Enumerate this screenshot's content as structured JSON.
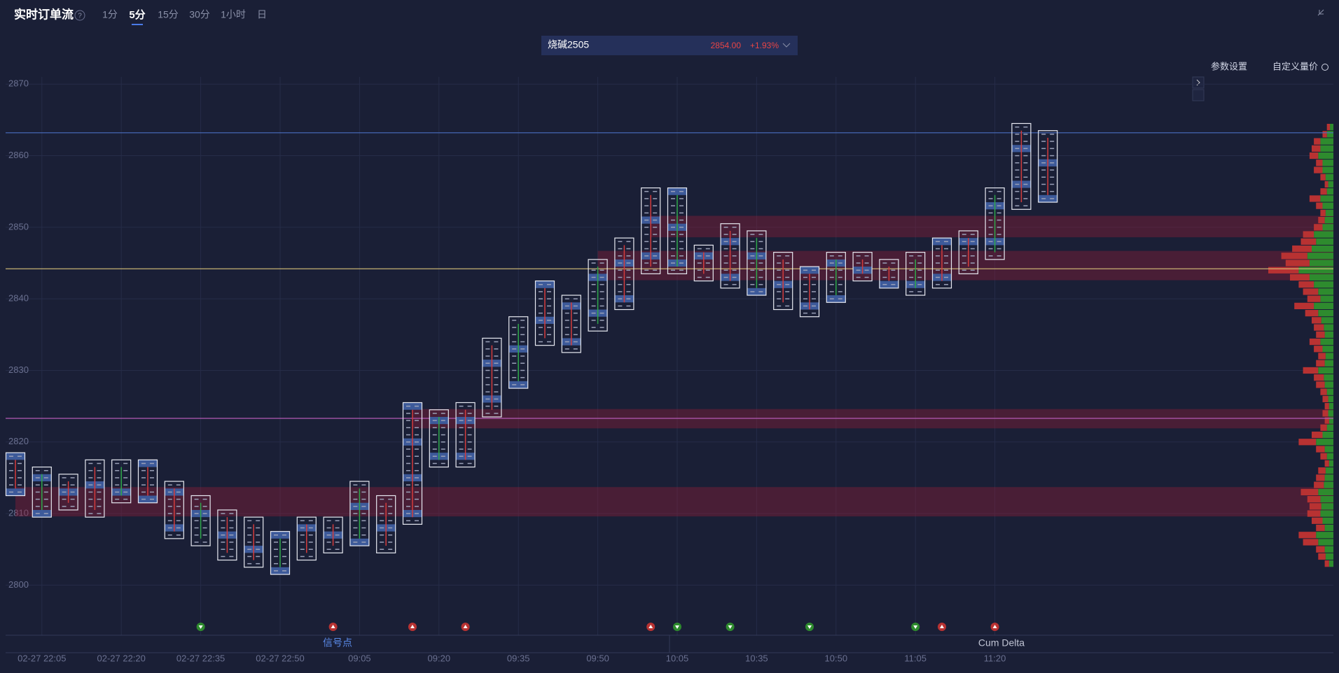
{
  "header": {
    "title": "实时订单流",
    "help": "?",
    "timeframes": [
      "1分",
      "5分",
      "15分",
      "30分",
      "1小时",
      "日"
    ],
    "active_timeframe": 1
  },
  "instrument": {
    "name": "烧碱2505",
    "price": "2854.00",
    "change": "+1.93%"
  },
  "toolbar": [
    "参数设置",
    "自定义量价"
  ],
  "tabs": [
    "信号点",
    "Cum Delta"
  ],
  "chart_data": {
    "type": "footprint",
    "categories": [
      null,
      "02-27 22:05",
      null,
      null,
      "02-27 22:20",
      null,
      null,
      "02-27 22:35",
      null,
      null,
      "02-27 22:50",
      null,
      null,
      "09:05",
      null,
      null,
      "09:20",
      null,
      null,
      "09:35",
      null,
      null,
      "09:50",
      null,
      null,
      "10:05",
      null,
      null,
      "10:35",
      null,
      null,
      "10:50",
      null,
      null,
      "11:05",
      null,
      null,
      "11:20",
      null,
      null
    ],
    "high": [
      2818,
      2816,
      2815,
      2817,
      2817,
      2817,
      2814,
      2812,
      2810,
      2809,
      2807,
      2809,
      2809,
      2814,
      2812,
      2825,
      2824,
      2825,
      2834,
      2837,
      2842,
      2840,
      2845,
      2848,
      2855,
      2855,
      2847,
      2850,
      2849,
      2846,
      2844,
      2846,
      2846,
      2845,
      2846,
      2848,
      2849,
      2855,
      2864,
      2863
    ],
    "low": [
      2813,
      2810,
      2811,
      2810,
      2812,
      2812,
      2807,
      2806,
      2804,
      2803,
      2802,
      2804,
      2805,
      2806,
      2805,
      2809,
      2817,
      2817,
      2824,
      2828,
      2834,
      2833,
      2836,
      2839,
      2844,
      2844,
      2843,
      2842,
      2841,
      2839,
      2838,
      2840,
      2843,
      2842,
      2841,
      2842,
      2844,
      2846,
      2853,
      2854
    ],
    "ylim": [
      2793,
      2871
    ],
    "yticks": [
      2800,
      2810,
      2820,
      2830,
      2840,
      2850,
      2860,
      2870
    ],
    "grid": true,
    "reference_lines": [
      {
        "value": 2863.2,
        "color": "#4a6fc0"
      },
      {
        "value": 2844.2,
        "color": "#d9c27a"
      },
      {
        "value": 2823.3,
        "color": "#b55ab5"
      }
    ],
    "zones": [
      [
        2848.6,
        2851.6
      ],
      [
        2842.6,
        2846.7
      ],
      [
        2821.9,
        2824.6
      ],
      [
        2809.6,
        2813.7
      ]
    ],
    "signals": [
      {
        "bar": 7,
        "kind": "sell"
      },
      {
        "bar": 12,
        "kind": "buy"
      },
      {
        "bar": 15,
        "kind": "buy"
      },
      {
        "bar": 17,
        "kind": "buy"
      },
      {
        "bar": 24,
        "kind": "buy"
      },
      {
        "bar": 25,
        "kind": "sell"
      },
      {
        "bar": 27,
        "kind": "sell"
      },
      {
        "bar": 30,
        "kind": "sell"
      },
      {
        "bar": 34,
        "kind": "sell"
      },
      {
        "bar": 35,
        "kind": "buy"
      },
      {
        "bar": 37,
        "kind": "buy"
      }
    ],
    "profile": {
      "prices": [
        2864,
        2863,
        2862,
        2861,
        2860,
        2859,
        2858,
        2857,
        2856,
        2855,
        2854,
        2853,
        2852,
        2851,
        2850,
        2849,
        2848,
        2847,
        2846,
        2845,
        2844,
        2843,
        2842,
        2841,
        2840,
        2839,
        2838,
        2837,
        2836,
        2835,
        2834,
        2833,
        2832,
        2831,
        2830,
        2829,
        2828,
        2827,
        2826,
        2825,
        2824,
        2823,
        2822,
        2821,
        2820,
        2819,
        2818,
        2817,
        2816,
        2815,
        2814,
        2813,
        2812,
        2811,
        2810,
        2809,
        2808,
        2807,
        2806,
        2805,
        2804,
        2803
      ],
      "buy": [
        8,
        15,
        30,
        30,
        35,
        25,
        25,
        18,
        12,
        15,
        30,
        25,
        18,
        20,
        25,
        45,
        40,
        50,
        60,
        55,
        80,
        55,
        45,
        35,
        30,
        45,
        35,
        28,
        22,
        20,
        30,
        25,
        18,
        20,
        35,
        22,
        20,
        15,
        12,
        10,
        12,
        10,
        15,
        25,
        40,
        20,
        15,
        10,
        18,
        20,
        22,
        35,
        30,
        28,
        30,
        25,
        20,
        40,
        35,
        20,
        18,
        10
      ],
      "sell": [
        7,
        10,
        15,
        20,
        20,
        15,
        20,
        12,
        8,
        15,
        25,
        15,
        12,
        15,
        20,
        25,
        35,
        45,
        60,
        55,
        70,
        45,
        35,
        35,
        30,
        45,
        30,
        22,
        23,
        20,
        25,
        20,
        17,
        20,
        35,
        23,
        20,
        15,
        13,
        10,
        13,
        10,
        15,
        25,
        40,
        20,
        15,
        10,
        17,
        20,
        23,
        40,
        30,
        27,
        30,
        25,
        20,
        40,
        35,
        20,
        17,
        10
      ],
      "buy_color": "#2e8b2e",
      "sell_color": "#b83232"
    }
  }
}
